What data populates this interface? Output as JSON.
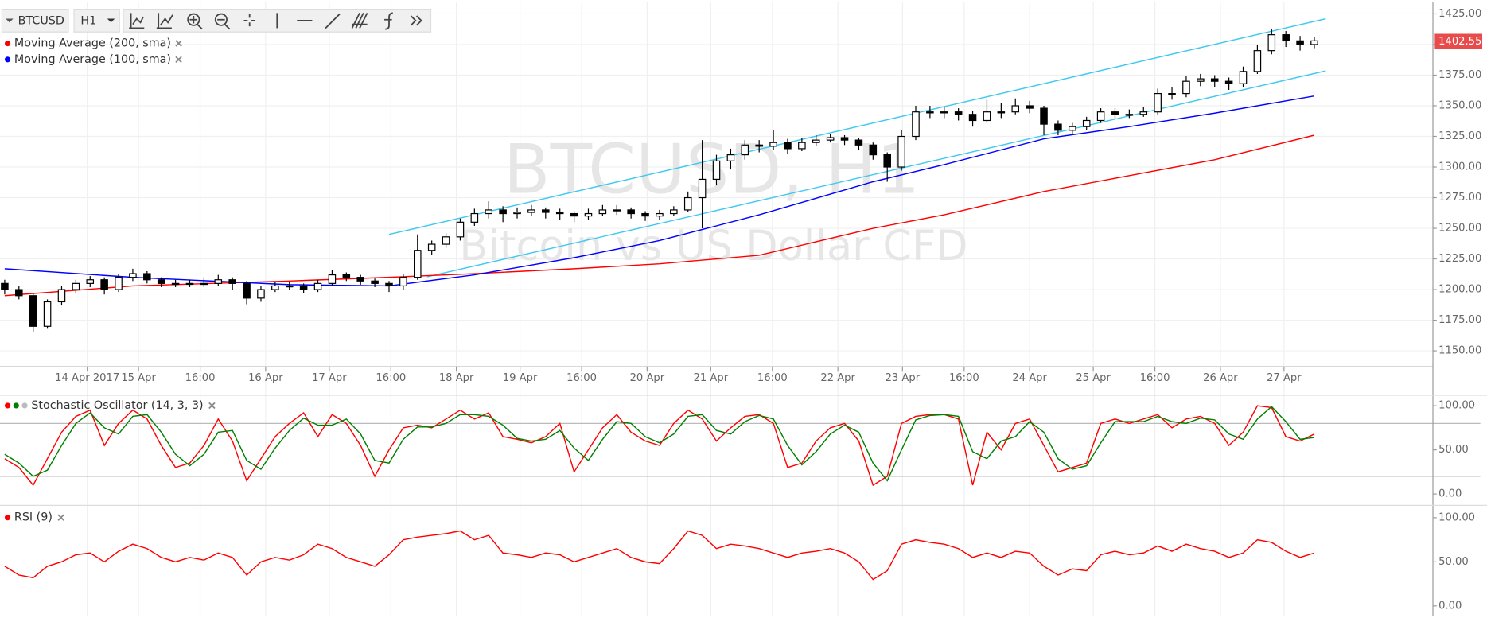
{
  "toolbar": {
    "symbol": "BTCUSD",
    "interval": "H1"
  },
  "chart_data": [
    {
      "type": "candlestick",
      "watermark": "BTCUSD, H1",
      "watermark_subtitle": "Bitcoin vs US Dollar CFD",
      "up_color": "#ffffff",
      "down_color": "#000000",
      "candles": [
        [
          1205,
          1208,
          1196,
          1200
        ],
        [
          1200,
          1203,
          1192,
          1195
        ],
        [
          1195,
          1197,
          1165,
          1170
        ],
        [
          1170,
          1192,
          1168,
          1190
        ],
        [
          1190,
          1203,
          1187,
          1200
        ],
        [
          1200,
          1208,
          1197,
          1205
        ],
        [
          1205,
          1211,
          1202,
          1208
        ],
        [
          1208,
          1210,
          1196,
          1200
        ],
        [
          1200,
          1213,
          1198,
          1210
        ],
        [
          1210,
          1217,
          1207,
          1213
        ],
        [
          1213,
          1215,
          1205,
          1208
        ],
        [
          1208,
          1210,
          1202,
          1205
        ],
        [
          1205,
          1208,
          1202,
          1205
        ],
        [
          1205,
          1208,
          1202,
          1205
        ],
        [
          1205,
          1210,
          1202,
          1205
        ],
        [
          1205,
          1212,
          1203,
          1208
        ],
        [
          1208,
          1210,
          1200,
          1205
        ],
        [
          1205,
          1207,
          1188,
          1193
        ],
        [
          1193,
          1203,
          1190,
          1200
        ],
        [
          1200,
          1206,
          1198,
          1203
        ],
        [
          1203,
          1206,
          1200,
          1203
        ],
        [
          1203,
          1205,
          1197,
          1200
        ],
        [
          1200,
          1208,
          1198,
          1205
        ],
        [
          1205,
          1216,
          1203,
          1212
        ],
        [
          1212,
          1214,
          1207,
          1210
        ],
        [
          1210,
          1212,
          1204,
          1207
        ],
        [
          1207,
          1209,
          1202,
          1205
        ],
        [
          1205,
          1207,
          1198,
          1203
        ],
        [
          1203,
          1213,
          1200,
          1210
        ],
        [
          1210,
          1245,
          1208,
          1232
        ],
        [
          1232,
          1240,
          1228,
          1237
        ],
        [
          1237,
          1246,
          1234,
          1243
        ],
        [
          1243,
          1258,
          1240,
          1255
        ],
        [
          1255,
          1266,
          1252,
          1262
        ],
        [
          1262,
          1272,
          1258,
          1265
        ],
        [
          1265,
          1268,
          1255,
          1262
        ],
        [
          1262,
          1267,
          1258,
          1263
        ],
        [
          1263,
          1269,
          1260,
          1265
        ],
        [
          1265,
          1267,
          1258,
          1263
        ],
        [
          1263,
          1266,
          1257,
          1262
        ],
        [
          1262,
          1264,
          1255,
          1260
        ],
        [
          1260,
          1266,
          1257,
          1262
        ],
        [
          1262,
          1269,
          1260,
          1265
        ],
        [
          1265,
          1269,
          1261,
          1265
        ],
        [
          1265,
          1267,
          1258,
          1262
        ],
        [
          1262,
          1264,
          1256,
          1260
        ],
        [
          1260,
          1265,
          1257,
          1262
        ],
        [
          1262,
          1268,
          1260,
          1265
        ],
        [
          1265,
          1280,
          1263,
          1275
        ],
        [
          1275,
          1322,
          1250,
          1290
        ],
        [
          1290,
          1310,
          1285,
          1305
        ],
        [
          1305,
          1315,
          1298,
          1310
        ],
        [
          1310,
          1322,
          1306,
          1318
        ],
        [
          1318,
          1322,
          1312,
          1317
        ],
        [
          1317,
          1330,
          1314,
          1320
        ],
        [
          1320,
          1323,
          1311,
          1315
        ],
        [
          1315,
          1324,
          1313,
          1320
        ],
        [
          1320,
          1326,
          1317,
          1322
        ],
        [
          1322,
          1327,
          1320,
          1324
        ],
        [
          1324,
          1326,
          1318,
          1322
        ],
        [
          1322,
          1324,
          1314,
          1318
        ],
        [
          1318,
          1320,
          1306,
          1310
        ],
        [
          1310,
          1312,
          1288,
          1300
        ],
        [
          1300,
          1330,
          1297,
          1325
        ],
        [
          1325,
          1350,
          1322,
          1345
        ],
        [
          1345,
          1350,
          1340,
          1345
        ],
        [
          1345,
          1349,
          1340,
          1345
        ],
        [
          1345,
          1348,
          1338,
          1343
        ],
        [
          1343,
          1346,
          1333,
          1338
        ],
        [
          1338,
          1355,
          1336,
          1345
        ],
        [
          1345,
          1352,
          1340,
          1345
        ],
        [
          1345,
          1356,
          1343,
          1350
        ],
        [
          1350,
          1354,
          1344,
          1348
        ],
        [
          1348,
          1350,
          1326,
          1335
        ],
        [
          1335,
          1338,
          1326,
          1330
        ],
        [
          1330,
          1336,
          1327,
          1333
        ],
        [
          1333,
          1341,
          1330,
          1338
        ],
        [
          1338,
          1348,
          1336,
          1345
        ],
        [
          1345,
          1348,
          1339,
          1343
        ],
        [
          1343,
          1347,
          1340,
          1343
        ],
        [
          1343,
          1349,
          1341,
          1345
        ],
        [
          1345,
          1364,
          1343,
          1360
        ],
        [
          1360,
          1365,
          1355,
          1360
        ],
        [
          1360,
          1374,
          1357,
          1370
        ],
        [
          1370,
          1376,
          1366,
          1372
        ],
        [
          1372,
          1375,
          1365,
          1370
        ],
        [
          1370,
          1373,
          1363,
          1368
        ],
        [
          1368,
          1382,
          1365,
          1378
        ],
        [
          1378,
          1400,
          1376,
          1395
        ],
        [
          1395,
          1413,
          1392,
          1408
        ],
        [
          1408,
          1411,
          1398,
          1403
        ],
        [
          1403,
          1407,
          1395,
          1400
        ],
        [
          1400,
          1406,
          1397,
          1403
        ]
      ],
      "xlim": [
        -0.33,
        100.33
      ],
      "xticks": [
        {
          "value": 5.8,
          "label": "14 Apr 2017"
        },
        {
          "value": 9.4,
          "label": "15 Apr"
        },
        {
          "value": 13.73,
          "label": "16:00"
        },
        {
          "value": 18.33,
          "label": "16 Apr"
        },
        {
          "value": 22.8,
          "label": "17 Apr"
        },
        {
          "value": 27.13,
          "label": "16:00"
        },
        {
          "value": 31.73,
          "label": "18 Apr"
        },
        {
          "value": 36.2,
          "label": "19 Apr"
        },
        {
          "value": 40.53,
          "label": "16:00"
        },
        {
          "value": 45.13,
          "label": "20 Apr"
        },
        {
          "value": 49.6,
          "label": "21 Apr"
        },
        {
          "value": 53.93,
          "label": "16:00"
        },
        {
          "value": 58.53,
          "label": "22 Apr"
        },
        {
          "value": 63.07,
          "label": "23 Apr"
        },
        {
          "value": 67.4,
          "label": "16:00"
        },
        {
          "value": 72,
          "label": "24 Apr"
        },
        {
          "value": 76.47,
          "label": "25 Apr"
        },
        {
          "value": 80.8,
          "label": "16:00"
        },
        {
          "value": 85.4,
          "label": "26 Apr"
        },
        {
          "value": 89.87,
          "label": "27 Apr"
        }
      ],
      "ylim": [
        1140,
        1435
      ],
      "yticks": [
        {
          "value": 1150,
          "label": "1150.00"
        },
        {
          "value": 1175,
          "label": "1175.00"
        },
        {
          "value": 1200,
          "label": "1200.00"
        },
        {
          "value": 1225,
          "label": "1225.00"
        },
        {
          "value": 1250,
          "label": "1250.00"
        },
        {
          "value": 1275,
          "label": "1275.00"
        },
        {
          "value": 1300,
          "label": "1300.00"
        },
        {
          "value": 1325,
          "label": "1325.00"
        },
        {
          "value": 1350,
          "label": "1350.00"
        },
        {
          "value": 1375,
          "label": "1375.00"
        },
        {
          "value": 1400,
          "label": "1400.00"
        },
        {
          "value": 1425,
          "label": "1425.00"
        }
      ],
      "grid": true,
      "last_price": 1402.55,
      "last_price_color": "#e84b4b",
      "ma_x": [
        0,
        9,
        20,
        27,
        33,
        40,
        46,
        53,
        61,
        66,
        73,
        79,
        85,
        92
      ],
      "series": [
        {
          "name": "Moving Average (200, sma)",
          "color": "#ff0000",
          "values": [
            1195,
            1203,
            1207,
            1210,
            1213,
            1217,
            1221,
            1228,
            1250,
            1261,
            1280,
            1293,
            1306,
            1326
          ]
        },
        {
          "name": "Moving Average (100, sma)",
          "color": "#0000ff",
          "values": [
            1217,
            1210,
            1204,
            1203,
            1212,
            1226,
            1240,
            1261,
            1288,
            1302,
            1323,
            1333,
            1344,
            1358
          ]
        }
      ],
      "trend_lines": [
        {
          "color": "#3ec9f0",
          "x": [
            27,
            92.8
          ],
          "values": [
            1245,
            1421
          ]
        },
        {
          "color": "#3ec9f0",
          "x": [
            29.67,
            92.8
          ],
          "values": [
            1210.4,
            1378.5
          ]
        }
      ]
    },
    {
      "type": "line",
      "title": "Stochastic Oscillator (14, 3, 3)",
      "ylim": [
        -12,
        112
      ],
      "yticks": [
        {
          "value": 0,
          "label": "0.00"
        },
        {
          "value": 50,
          "label": "50.00"
        },
        {
          "value": 100,
          "label": "100.00"
        }
      ],
      "levels": [
        80,
        20
      ],
      "level_color": "#bbbbbb",
      "series": [
        {
          "color": "#ff0000",
          "values": [
            40,
            30,
            10,
            40,
            70,
            88,
            95,
            55,
            80,
            95,
            85,
            55,
            30,
            35,
            55,
            85,
            60,
            15,
            40,
            65,
            80,
            92,
            65,
            90,
            80,
            55,
            20,
            50,
            75,
            78,
            75,
            85,
            95,
            85,
            92,
            65,
            62,
            58,
            65,
            80,
            25,
            50,
            75,
            90,
            70,
            60,
            55,
            80,
            95,
            85,
            60,
            75,
            88,
            90,
            80,
            30,
            35,
            60,
            75,
            80,
            60,
            10,
            20,
            80,
            88,
            90,
            90,
            85,
            10,
            70,
            50,
            80,
            85,
            55,
            25,
            30,
            35,
            80,
            85,
            80,
            85,
            90,
            75,
            85,
            88,
            80,
            55,
            70,
            100,
            98,
            65,
            60,
            68
          ]
        },
        {
          "color": "#008000",
          "values": [
            45,
            35,
            20,
            27,
            55,
            80,
            92,
            75,
            68,
            88,
            90,
            70,
            45,
            32,
            45,
            70,
            72,
            38,
            28,
            52,
            72,
            86,
            78,
            78,
            85,
            68,
            38,
            35,
            62,
            76,
            76,
            80,
            90,
            90,
            88,
            78,
            63,
            60,
            62,
            72,
            52,
            38,
            62,
            82,
            80,
            65,
            58,
            68,
            88,
            90,
            72,
            68,
            82,
            89,
            85,
            55,
            33,
            48,
            68,
            78,
            70,
            35,
            15,
            50,
            84,
            89,
            90,
            88,
            48,
            40,
            60,
            65,
            82,
            70,
            40,
            28,
            32,
            58,
            82,
            82,
            82,
            88,
            82,
            80,
            86,
            84,
            68,
            62,
            85,
            99,
            82,
            62,
            64
          ]
        }
      ]
    },
    {
      "type": "line",
      "title": "RSI (9)",
      "ylim": [
        -12,
        112
      ],
      "yticks": [
        {
          "value": 0,
          "label": "0.00"
        },
        {
          "value": 50,
          "label": "50.00"
        },
        {
          "value": 100,
          "label": "100.00"
        }
      ],
      "series": [
        {
          "color": "#ff0000",
          "values": [
            45,
            35,
            32,
            45,
            50,
            58,
            60,
            50,
            62,
            70,
            65,
            55,
            50,
            55,
            52,
            60,
            55,
            35,
            50,
            55,
            52,
            58,
            70,
            65,
            55,
            50,
            45,
            58,
            75,
            78,
            80,
            82,
            85,
            75,
            80,
            60,
            58,
            55,
            60,
            58,
            50,
            55,
            60,
            65,
            55,
            50,
            48,
            65,
            85,
            80,
            65,
            70,
            68,
            65,
            60,
            55,
            60,
            62,
            65,
            60,
            50,
            30,
            40,
            70,
            75,
            72,
            70,
            65,
            55,
            60,
            55,
            62,
            60,
            45,
            35,
            42,
            40,
            58,
            62,
            58,
            60,
            68,
            62,
            70,
            65,
            62,
            55,
            60,
            75,
            72,
            62,
            55,
            60
          ]
        }
      ]
    }
  ]
}
